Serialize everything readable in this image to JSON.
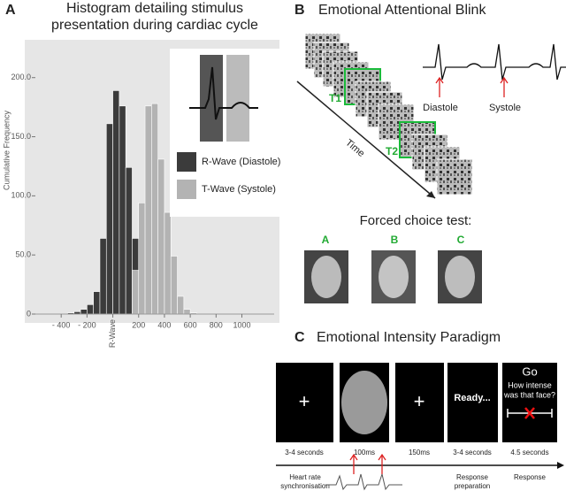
{
  "chart_data": {
    "type": "histogram",
    "panel_label": "A",
    "title": "Histogram detailing stimulus presentation during cardiac cycle",
    "ylabel": "Cumulative Frequency",
    "bins": [
      -350,
      -300,
      -250,
      -200,
      -150,
      -100,
      -50,
      0,
      50,
      100,
      150,
      200,
      250,
      300,
      350,
      400,
      450,
      500,
      550,
      600,
      650
    ],
    "series": [
      {
        "name": "R-Wave (Diastole)",
        "color": "#3b3b3b",
        "values": [
          1,
          2,
          4,
          8,
          19,
          64,
          161,
          189,
          176,
          124,
          64,
          0,
          0,
          0,
          0,
          0,
          0,
          0,
          0,
          0
        ]
      },
      {
        "name": "T-Wave (Systole)",
        "color": "#b3b3b3",
        "values": [
          0,
          0,
          0,
          0,
          0,
          0,
          0,
          0,
          0,
          0,
          37,
          94,
          176,
          178,
          131,
          86,
          49,
          15,
          4,
          1
        ]
      }
    ],
    "xlim": [
      -600,
      1250
    ],
    "xticks": [
      {
        "value": -400,
        "label": "- 400"
      },
      {
        "value": -200,
        "label": "- 200"
      },
      {
        "value": 0,
        "label": "R-Wave"
      },
      200,
      400,
      600,
      800,
      1000
    ],
    "ylim": [
      0,
      220
    ],
    "yticks": [
      0,
      {
        "value": 50,
        "label": "50.0"
      },
      {
        "value": 100,
        "label": "100.0"
      },
      {
        "value": 150,
        "label": "150.0"
      },
      {
        "value": 200,
        "label": "200.0"
      }
    ]
  },
  "panel_b": {
    "label": "B",
    "title": "Emotional Attentional Blink",
    "targets": [
      "T1",
      "T2"
    ],
    "axis": "Time",
    "ecg_labels": [
      "Diastole",
      "Systole"
    ],
    "test_title": "Forced choice test:",
    "choices": [
      "A",
      "B",
      "C"
    ]
  },
  "panel_c": {
    "label": "C",
    "title": "Emotional Intensity Paradigm",
    "screens": {
      "fixation": "+",
      "ready": "Ready...",
      "go": "Go",
      "question": [
        "How intense",
        "was that face?"
      ]
    },
    "durations": [
      "3-4 seconds",
      "100ms",
      "150ms",
      "3-4 seconds",
      "4.5 seconds"
    ],
    "notes": {
      "sync": [
        "Heart rate",
        "synchronisation"
      ],
      "prep": [
        "Response",
        "preparation"
      ],
      "response": "Response"
    }
  }
}
